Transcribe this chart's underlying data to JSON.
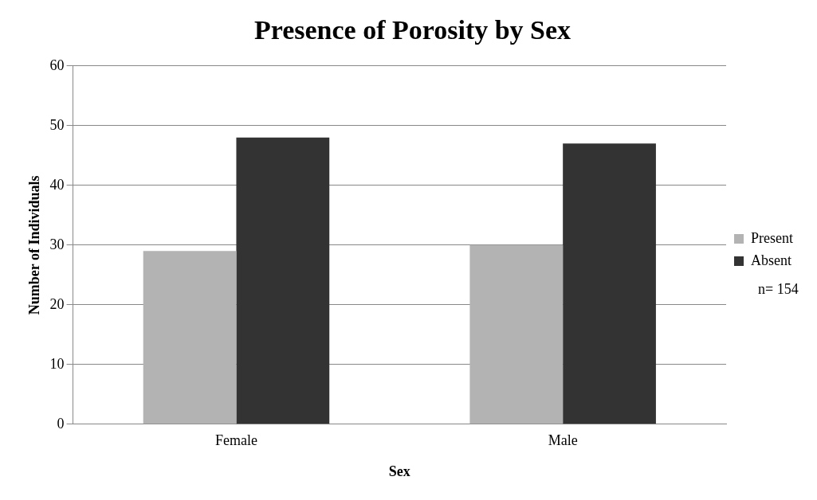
{
  "chart_data": {
    "type": "bar",
    "title": "Presence of Porosity by Sex",
    "xlabel": "Sex",
    "ylabel": "Number of Individuals",
    "categories": [
      "Female",
      "Male"
    ],
    "series": [
      {
        "name": "Present",
        "color": "#b3b3b3",
        "values": [
          29,
          30
        ]
      },
      {
        "name": "Absent",
        "color": "#333333",
        "values": [
          48,
          47
        ]
      }
    ],
    "ylim": [
      0,
      60
    ],
    "yticks": [
      0,
      10,
      20,
      30,
      40,
      50,
      60
    ],
    "grid": "y",
    "legend": "right",
    "annotations": [
      "n= 154"
    ]
  }
}
